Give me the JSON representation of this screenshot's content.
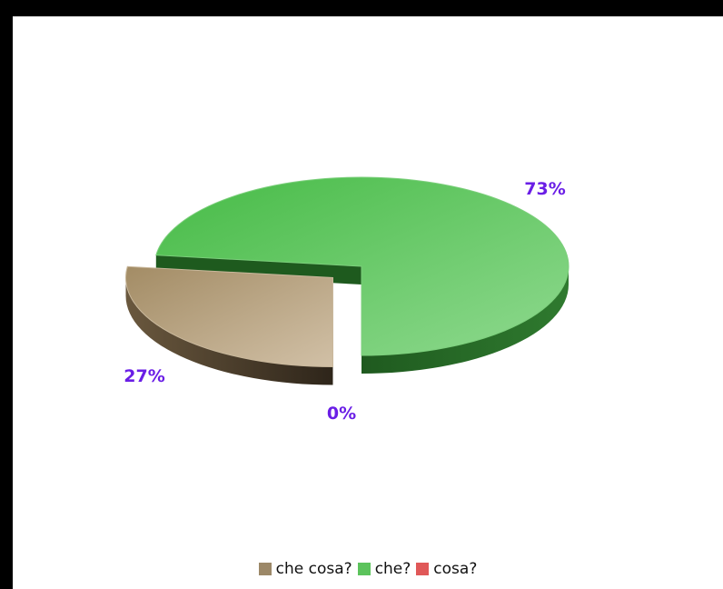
{
  "chart_data": {
    "type": "pie",
    "style": "3d-exploded",
    "title": "",
    "slices": [
      {
        "label": "che cosa?",
        "value": 27,
        "value_label": "27%",
        "color": "#b09a78",
        "side_color": "#4a3c2a"
      },
      {
        "label": "che?",
        "value": 73,
        "value_label": "73%",
        "color": "#5cc35c",
        "side_color": "#2a6a2a"
      },
      {
        "label": "cosa?",
        "value": 0,
        "value_label": "0%",
        "color": "#e05858",
        "side_color": "#8a2a2a"
      }
    ],
    "legend": {
      "position": "bottom",
      "items": [
        {
          "label": "che cosa?",
          "color": "#9c8868"
        },
        {
          "label": "che?",
          "color": "#5cc35c"
        },
        {
          "label": "cosa?",
          "color": "#e05858"
        }
      ]
    },
    "data_label_color": "#6a1ee6"
  }
}
